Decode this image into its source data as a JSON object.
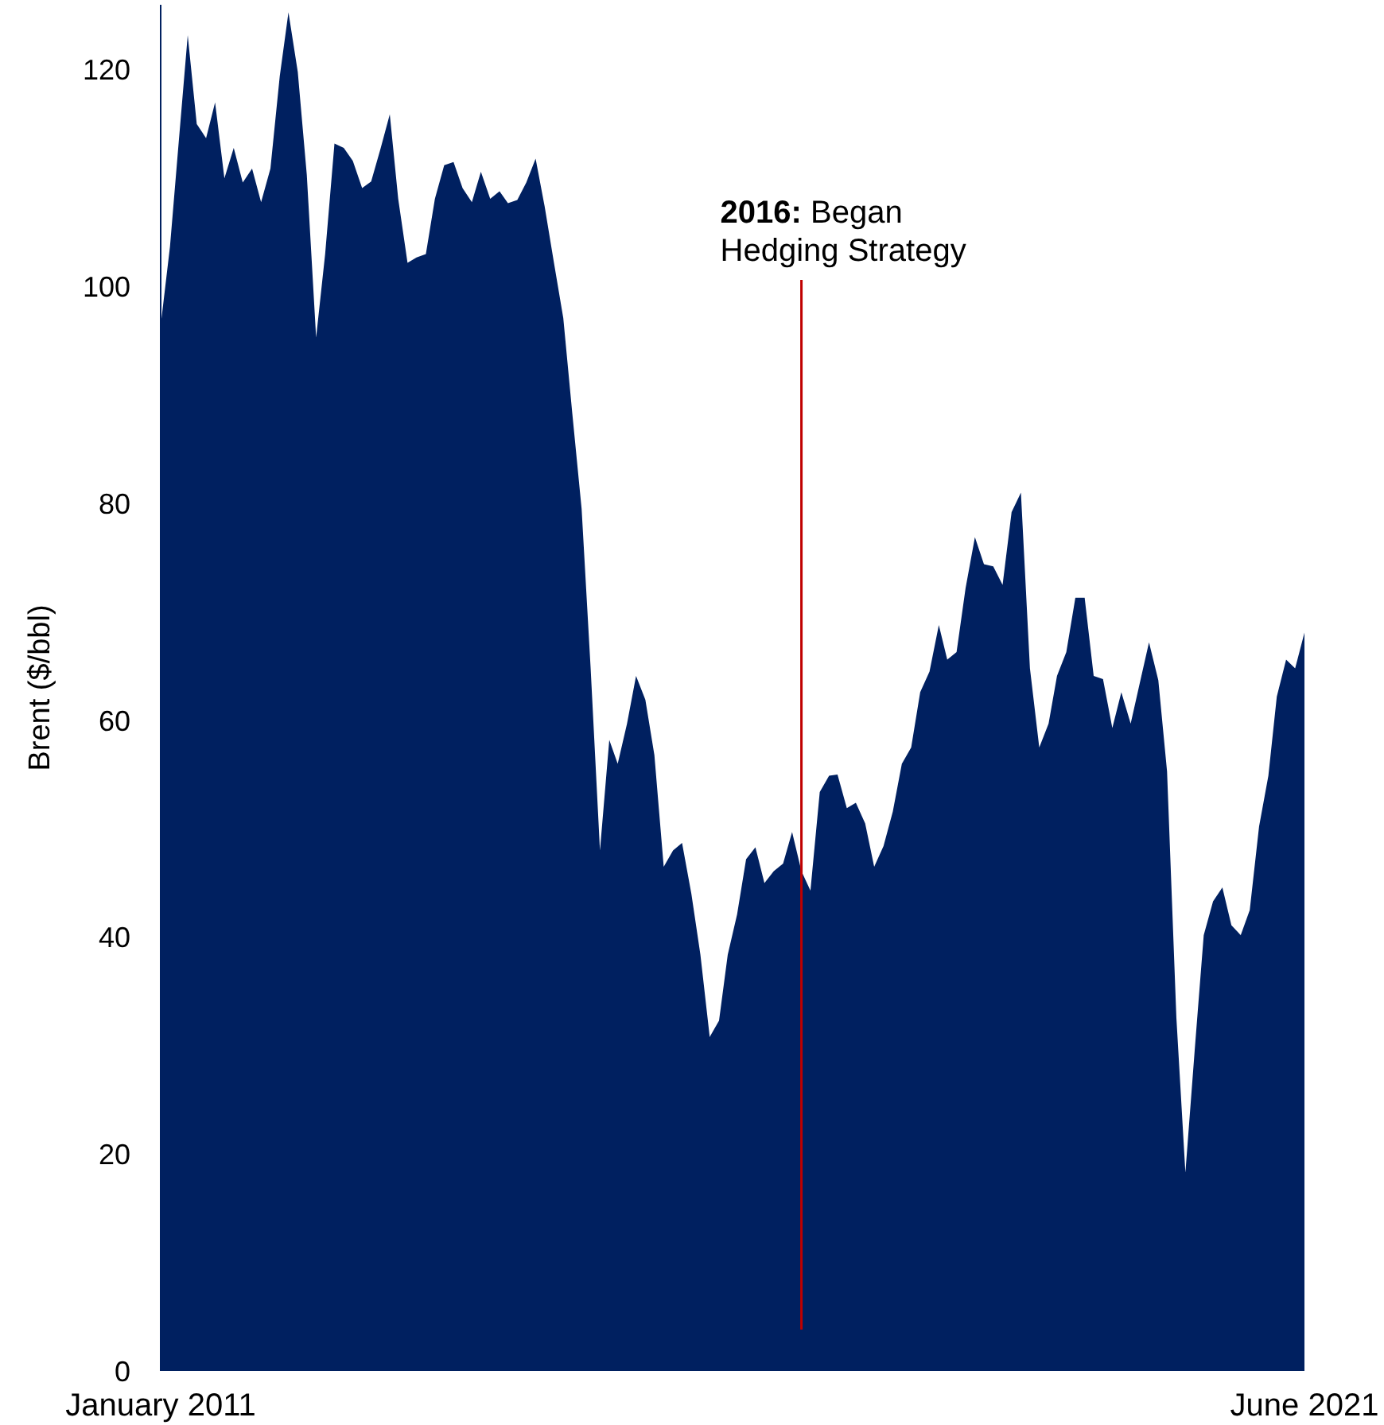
{
  "chart_data": {
    "type": "area",
    "ylabel": "Brent ($/bbl)",
    "x": [
      "2011-01",
      "2011-02",
      "2011-03",
      "2011-04",
      "2011-05",
      "2011-06",
      "2011-07",
      "2011-08",
      "2011-09",
      "2011-10",
      "2011-11",
      "2011-12",
      "2012-01",
      "2012-02",
      "2012-03",
      "2012-04",
      "2012-05",
      "2012-06",
      "2012-07",
      "2012-08",
      "2012-09",
      "2012-10",
      "2012-11",
      "2012-12",
      "2013-01",
      "2013-02",
      "2013-03",
      "2013-04",
      "2013-05",
      "2013-06",
      "2013-07",
      "2013-08",
      "2013-09",
      "2013-10",
      "2013-11",
      "2013-12",
      "2014-01",
      "2014-02",
      "2014-03",
      "2014-04",
      "2014-05",
      "2014-06",
      "2014-07",
      "2014-08",
      "2014-09",
      "2014-10",
      "2014-11",
      "2014-12",
      "2015-01",
      "2015-02",
      "2015-03",
      "2015-04",
      "2015-05",
      "2015-06",
      "2015-07",
      "2015-08",
      "2015-09",
      "2015-10",
      "2015-11",
      "2015-12",
      "2016-01",
      "2016-02",
      "2016-03",
      "2016-04",
      "2016-05",
      "2016-06",
      "2016-07",
      "2016-08",
      "2016-09",
      "2016-10",
      "2016-11",
      "2016-12",
      "2017-01",
      "2017-02",
      "2017-03",
      "2017-04",
      "2017-05",
      "2017-06",
      "2017-07",
      "2017-08",
      "2017-09",
      "2017-10",
      "2017-11",
      "2017-12",
      "2018-01",
      "2018-02",
      "2018-03",
      "2018-04",
      "2018-05",
      "2018-06",
      "2018-07",
      "2018-08",
      "2018-09",
      "2018-10",
      "2018-11",
      "2018-12",
      "2019-01",
      "2019-02",
      "2019-03",
      "2019-04",
      "2019-05",
      "2019-06",
      "2019-07",
      "2019-08",
      "2019-09",
      "2019-10",
      "2019-11",
      "2019-12",
      "2020-01",
      "2020-02",
      "2020-03",
      "2020-04",
      "2020-05",
      "2020-06",
      "2020-07",
      "2020-08",
      "2020-09",
      "2020-10",
      "2020-11",
      "2020-12",
      "2021-01",
      "2021-02",
      "2021-03",
      "2021-04",
      "2021-05",
      "2021-06"
    ],
    "values": [
      96.4,
      103.7,
      113,
      123.2,
      115,
      113.7,
      117,
      110,
      112.8,
      109.6,
      110.9,
      107.8,
      110.9,
      119.4,
      125.3,
      119.8,
      110.3,
      95.3,
      103,
      113.2,
      112.8,
      111.6,
      109.1,
      109.7,
      112.7,
      115.9,
      108.1,
      102.2,
      102.7,
      103,
      108.1,
      111.2,
      111.5,
      109.1,
      107.8,
      110.6,
      108.1,
      108.8,
      107.7,
      108,
      109.6,
      111.8,
      107.4,
      102.2,
      97.1,
      88.3,
      79.5,
      64.8,
      48,
      58.2,
      56,
      59.7,
      64.1,
      61.9,
      56.8,
      46.5,
      48,
      48.7,
      44,
      38.4,
      30.8,
      32.3,
      38.4,
      42.1,
      47.2,
      48.3,
      45,
      46.1,
      46.8,
      49.7,
      46.1,
      44.3,
      53.4,
      54.9,
      55,
      51.9,
      52.4,
      50.5,
      46.5,
      48.4,
      51.6,
      56,
      57.5,
      62.6,
      64.5,
      68.8,
      65.6,
      66.3,
      72.2,
      76.9,
      74.4,
      74.2,
      72.5,
      79.2,
      81,
      64.8,
      57.5,
      59.7,
      64.1,
      66.3,
      71.3,
      71.3,
      64.1,
      63.8,
      59.3,
      62.6,
      59.7,
      63.4,
      67.2,
      63.7,
      55.3,
      32.6,
      18.3,
      29.6,
      40.2,
      43.3,
      44.6,
      41.1,
      40.2,
      42.5,
      50.2,
      54.9,
      62.2,
      65.6,
      64.8,
      68.1
    ],
    "color": "#002060",
    "xlim": [
      "2011-01",
      "2021-06"
    ],
    "xticks": [
      {
        "value": "2011-01",
        "label": "January 2011"
      },
      {
        "value": "2021-06",
        "label": "June 2021"
      }
    ],
    "ylim": [
      0,
      126
    ],
    "yticks": [
      0,
      20,
      40,
      60,
      80,
      100,
      120
    ],
    "ref_lines": [
      {
        "axis": "x",
        "value": "2016-11",
        "label": "2016: Began Hedging Strategy",
        "color": "#c00000"
      }
    ],
    "grid": false
  }
}
